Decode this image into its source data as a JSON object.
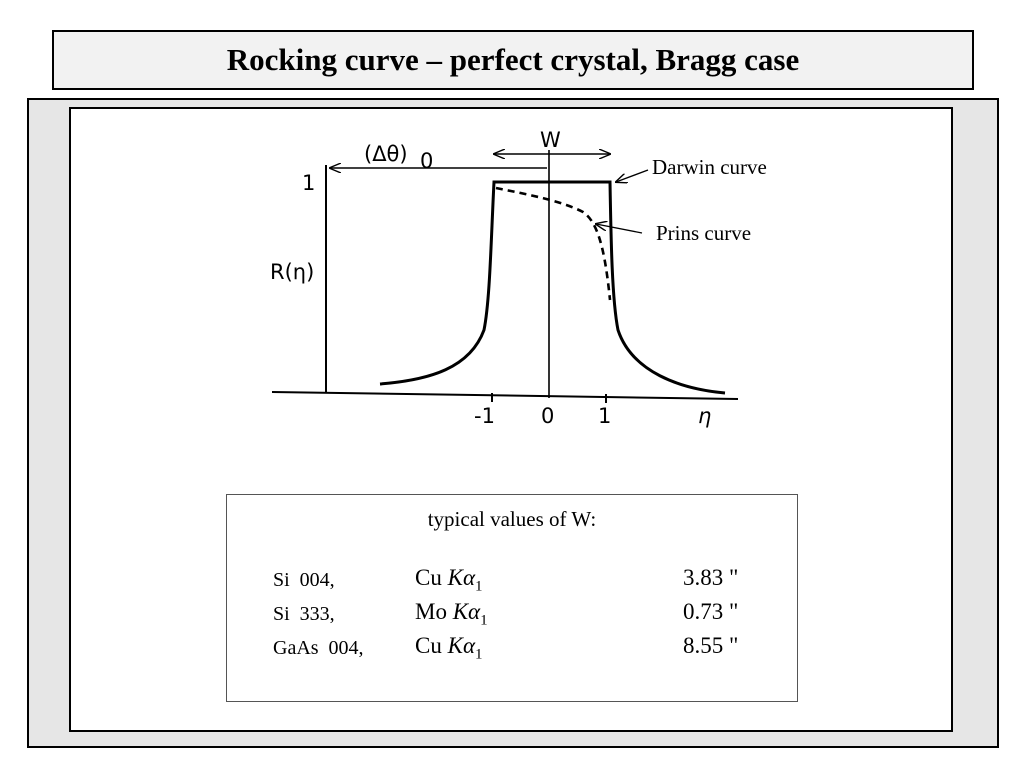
{
  "slide": {
    "title": "Rocking curve – perfect crystal, Bragg case"
  },
  "figure": {
    "labels": {
      "delta_theta": "(Δθ)",
      "delta_theta_sub": "0",
      "w": "W",
      "y_one": "1",
      "y_axis": "R(η)",
      "x_tick_neg1": "-1",
      "x_tick_0": "0",
      "x_tick_1": "1",
      "x_axis": "η",
      "darwin": "Darwin curve",
      "prins": "Prins curve"
    }
  },
  "table": {
    "caption": "typical values of W:",
    "rows": [
      {
        "sample": "Si  004,",
        "element": "Cu",
        "k": "K",
        "alpha": "α",
        "sub": "1",
        "value": "3.83 \""
      },
      {
        "sample": "Si  333,",
        "element": "Mo",
        "k": "K",
        "alpha": "α",
        "sub": "1",
        "value": "0.73 \""
      },
      {
        "sample": "GaAs  004,",
        "element": "Cu",
        "k": "K",
        "alpha": "α",
        "sub": "1",
        "value": "8.55 \""
      }
    ]
  }
}
